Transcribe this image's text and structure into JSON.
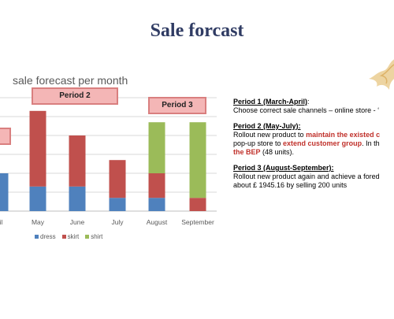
{
  "slide": {
    "title": "Sale forcast"
  },
  "colors": {
    "dress": "#4f81bd",
    "skirt": "#c0504d",
    "shirt": "#9bbb59",
    "period_fill": "#f4b6b6",
    "period_border": "#d97f7f",
    "highlight": "#c0312b"
  },
  "chart_data": {
    "type": "bar",
    "stacked": true,
    "title": "sale forecast per month",
    "categories": [
      "ril",
      "May",
      "June",
      "July",
      "August",
      "September"
    ],
    "series": [
      {
        "name": "dress",
        "values": [
          20,
          13,
          13,
          7,
          7,
          0
        ]
      },
      {
        "name": "skirt",
        "values": [
          0,
          40,
          27,
          20,
          13,
          7
        ]
      },
      {
        "name": "shirt",
        "values": [
          0,
          0,
          0,
          0,
          27,
          40
        ]
      }
    ],
    "ylim": [
      0,
      60
    ],
    "grid": true,
    "legend_position": "bottom",
    "period_labels": [
      "Period 2",
      "Period 3"
    ]
  },
  "notes": {
    "p1_head": "Period 1 (March-April)",
    "p1_colon": ":",
    "p1_text": "Choose correct sale channels – online store - ‘",
    "p2_head": "Period 2 (May-July):",
    "p2_line1_a": "Rollout new product to ",
    "p2_line1_hl": "maintain the existed c",
    "p2_line2_a": "pop-up store to ",
    "p2_line2_hl": "extend customer group",
    "p2_line2_b": ". In th",
    "p2_line3_hl": "the BEP",
    "p2_line3_b": " (48 units).",
    "p3_head": "Period 3 (August-September):",
    "p3_line1": "Rollout new product again and achieve a fored",
    "p3_line2": "about £ 1945.16 by selling 200 units"
  }
}
